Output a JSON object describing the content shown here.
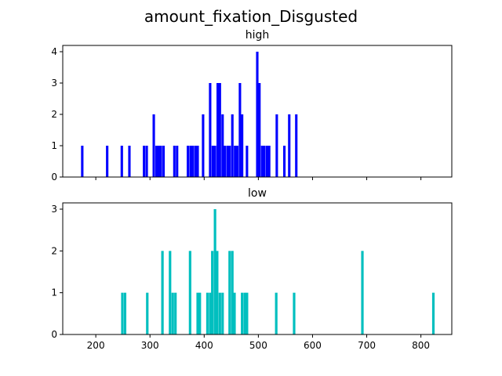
{
  "chart_data": [
    {
      "type": "bar",
      "title": "amount_fixation_Disgusted",
      "subtitle": "high",
      "color": "#0000ff",
      "xlim": [
        139,
        857
      ],
      "ylim": [
        0,
        4.2
      ],
      "xticks": [
        200,
        300,
        400,
        500,
        600,
        700,
        800
      ],
      "show_xtick_labels": false,
      "yticks": [
        0,
        1,
        2,
        3,
        4
      ],
      "bin_width": 4.5,
      "bins": [
        {
          "x": 175,
          "count": 1
        },
        {
          "x": 221,
          "count": 1
        },
        {
          "x": 248,
          "count": 1
        },
        {
          "x": 262,
          "count": 1
        },
        {
          "x": 289,
          "count": 1
        },
        {
          "x": 294,
          "count": 1
        },
        {
          "x": 307,
          "count": 2
        },
        {
          "x": 312,
          "count": 1
        },
        {
          "x": 316,
          "count": 1
        },
        {
          "x": 320,
          "count": 1
        },
        {
          "x": 325,
          "count": 1
        },
        {
          "x": 345,
          "count": 1
        },
        {
          "x": 350,
          "count": 1
        },
        {
          "x": 370,
          "count": 1
        },
        {
          "x": 375,
          "count": 1
        },
        {
          "x": 379,
          "count": 1
        },
        {
          "x": 384,
          "count": 1
        },
        {
          "x": 388,
          "count": 1
        },
        {
          "x": 398,
          "count": 2
        },
        {
          "x": 411,
          "count": 3
        },
        {
          "x": 416,
          "count": 1
        },
        {
          "x": 420,
          "count": 1
        },
        {
          "x": 425,
          "count": 3
        },
        {
          "x": 429,
          "count": 3
        },
        {
          "x": 434,
          "count": 2
        },
        {
          "x": 438,
          "count": 1
        },
        {
          "x": 443,
          "count": 1
        },
        {
          "x": 447,
          "count": 1
        },
        {
          "x": 452,
          "count": 2
        },
        {
          "x": 457,
          "count": 1
        },
        {
          "x": 461,
          "count": 1
        },
        {
          "x": 466,
          "count": 3
        },
        {
          "x": 470,
          "count": 2
        },
        {
          "x": 479,
          "count": 1
        },
        {
          "x": 498,
          "count": 4
        },
        {
          "x": 502,
          "count": 3
        },
        {
          "x": 507,
          "count": 1
        },
        {
          "x": 511,
          "count": 1
        },
        {
          "x": 516,
          "count": 1
        },
        {
          "x": 520,
          "count": 1
        },
        {
          "x": 534,
          "count": 2
        },
        {
          "x": 548,
          "count": 1
        },
        {
          "x": 557,
          "count": 2
        },
        {
          "x": 570,
          "count": 2
        }
      ]
    },
    {
      "type": "bar",
      "subtitle": "low",
      "color": "#00bfbf",
      "xlim": [
        139,
        857
      ],
      "ylim": [
        0,
        3.15
      ],
      "xticks": [
        200,
        300,
        400,
        500,
        600,
        700,
        800
      ],
      "show_xtick_labels": true,
      "yticks": [
        0,
        1,
        2,
        3
      ],
      "bin_width": 4.6,
      "bins": [
        {
          "x": 249,
          "count": 1
        },
        {
          "x": 254,
          "count": 1
        },
        {
          "x": 295,
          "count": 1
        },
        {
          "x": 323,
          "count": 2
        },
        {
          "x": 337,
          "count": 2
        },
        {
          "x": 342,
          "count": 1
        },
        {
          "x": 347,
          "count": 1
        },
        {
          "x": 374,
          "count": 2
        },
        {
          "x": 388,
          "count": 1
        },
        {
          "x": 392,
          "count": 1
        },
        {
          "x": 406,
          "count": 1
        },
        {
          "x": 411,
          "count": 1
        },
        {
          "x": 415,
          "count": 2
        },
        {
          "x": 420,
          "count": 3
        },
        {
          "x": 424,
          "count": 2
        },
        {
          "x": 429,
          "count": 1
        },
        {
          "x": 434,
          "count": 1
        },
        {
          "x": 447,
          "count": 2
        },
        {
          "x": 452,
          "count": 2
        },
        {
          "x": 456,
          "count": 1
        },
        {
          "x": 470,
          "count": 1
        },
        {
          "x": 475,
          "count": 1
        },
        {
          "x": 479,
          "count": 1
        },
        {
          "x": 533,
          "count": 1
        },
        {
          "x": 566,
          "count": 1
        },
        {
          "x": 692,
          "count": 2
        },
        {
          "x": 823,
          "count": 1
        }
      ]
    }
  ]
}
